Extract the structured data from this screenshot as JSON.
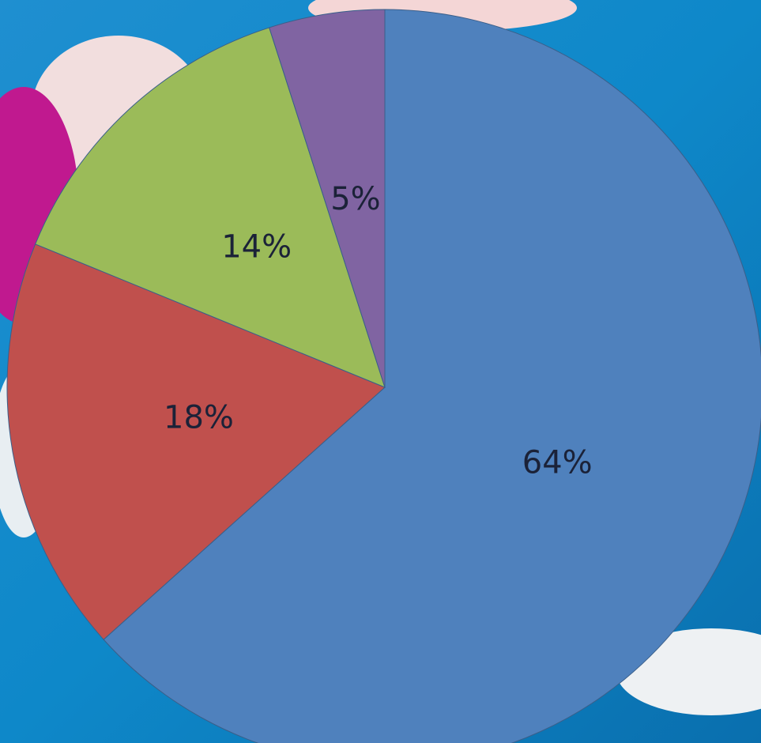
{
  "chart_data": {
    "type": "pie",
    "values": [
      64,
      18,
      14,
      5
    ],
    "value_labels": [
      "64%",
      "18%",
      "14%",
      "5%"
    ],
    "colors": [
      "#4f81bd",
      "#c0504d",
      "#9bbb59",
      "#8064a2"
    ]
  }
}
